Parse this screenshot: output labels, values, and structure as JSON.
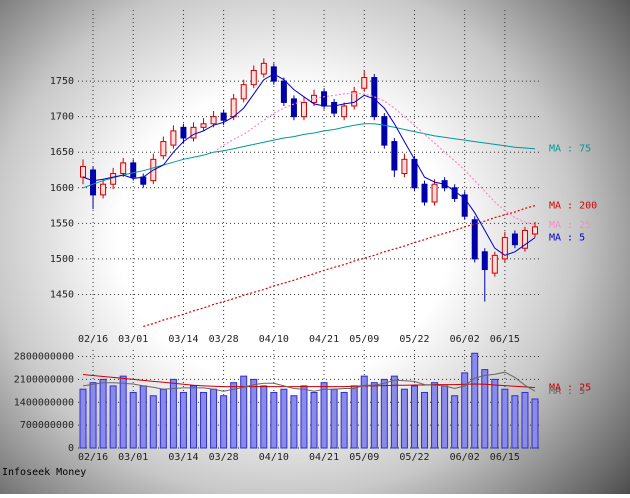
{
  "footer": "Infoseek Money",
  "chart_data": [
    {
      "type": "candlestick",
      "categories": [
        null,
        "02/16",
        null,
        null,
        null,
        "03/01",
        null,
        null,
        null,
        null,
        "03/14",
        null,
        null,
        null,
        "03/28",
        null,
        null,
        null,
        null,
        "04/10",
        null,
        null,
        null,
        null,
        "04/21",
        null,
        null,
        null,
        "05/09",
        null,
        null,
        null,
        null,
        "05/22",
        null,
        null,
        null,
        null,
        "06/02",
        null,
        null,
        null,
        "06/15",
        null,
        null,
        null
      ],
      "open": [
        1615,
        1625,
        1590,
        1605,
        1620,
        1635,
        1615,
        1610,
        1645,
        1660,
        1685,
        1670,
        1685,
        1690,
        1705,
        1700,
        1725,
        1745,
        1760,
        1770,
        1750,
        1725,
        1700,
        1720,
        1735,
        1720,
        1700,
        1715,
        1740,
        1755,
        1700,
        1665,
        1620,
        1640,
        1605,
        1580,
        1610,
        1600,
        1590,
        1555,
        1510,
        1480,
        1500,
        1535,
        1515,
        1535
      ],
      "high": [
        1640,
        1630,
        1612,
        1628,
        1642,
        1640,
        1620,
        1648,
        1672,
        1688,
        1690,
        1692,
        1698,
        1708,
        1710,
        1732,
        1752,
        1772,
        1782,
        1775,
        1755,
        1730,
        1728,
        1738,
        1740,
        1725,
        1720,
        1742,
        1765,
        1760,
        1705,
        1670,
        1648,
        1645,
        1610,
        1612,
        1615,
        1605,
        1595,
        1560,
        1515,
        1510,
        1538,
        1540,
        1545,
        1552
      ],
      "low": [
        1605,
        1570,
        1585,
        1598,
        1615,
        1610,
        1600,
        1605,
        1640,
        1655,
        1662,
        1665,
        1680,
        1685,
        1688,
        1695,
        1720,
        1740,
        1755,
        1745,
        1715,
        1695,
        1695,
        1715,
        1710,
        1700,
        1695,
        1710,
        1735,
        1695,
        1655,
        1615,
        1615,
        1595,
        1575,
        1575,
        1595,
        1580,
        1555,
        1495,
        1440,
        1475,
        1495,
        1515,
        1510,
        1530
      ],
      "close": [
        1630,
        1590,
        1605,
        1620,
        1635,
        1615,
        1605,
        1640,
        1665,
        1680,
        1670,
        1685,
        1690,
        1700,
        1695,
        1725,
        1745,
        1765,
        1775,
        1750,
        1720,
        1700,
        1720,
        1730,
        1715,
        1705,
        1715,
        1735,
        1755,
        1700,
        1660,
        1625,
        1640,
        1600,
        1580,
        1605,
        1600,
        1585,
        1560,
        1500,
        1485,
        1505,
        1530,
        1520,
        1540,
        1545
      ],
      "up_color": "#cc0000",
      "down_color": "#0000aa",
      "series": [
        {
          "name": "MA : 75",
          "color": "#009999",
          "style": "solid",
          "values": [
            1600,
            1605,
            1610,
            1614,
            1618,
            1621,
            1624,
            1628,
            1632,
            1636,
            1640,
            1643,
            1646,
            1650,
            1652,
            1655,
            1658,
            1661,
            1664,
            1667,
            1670,
            1672,
            1675,
            1677,
            1680,
            1682,
            1685,
            1688,
            1690,
            1690,
            1688,
            1685,
            1682,
            1679,
            1676,
            1673,
            1671,
            1669,
            1667,
            1665,
            1663,
            1661,
            1659,
            1657,
            1656,
            1655
          ]
        },
        {
          "name": "MA : 200",
          "color": "#dd0000",
          "style": "dotted",
          "values": [
            null,
            null,
            null,
            null,
            null,
            null,
            1405,
            1409,
            1414,
            1418,
            1422,
            1427,
            1431,
            1436,
            1440,
            1444,
            1449,
            1453,
            1457,
            1462,
            1466,
            1470,
            1475,
            1479,
            1484,
            1488,
            1492,
            1497,
            1501,
            1505,
            1510,
            1514,
            1518,
            1523,
            1527,
            1532,
            1536,
            1540,
            1545,
            1549,
            1553,
            1558,
            1562,
            1566,
            1571,
            1575
          ]
        },
        {
          "name": "MA : 25",
          "color": "#ff88cc",
          "style": "dotted",
          "values": [
            null,
            null,
            null,
            null,
            null,
            null,
            null,
            null,
            null,
            null,
            null,
            null,
            null,
            1650,
            1660,
            1668,
            1675,
            1685,
            1695,
            1705,
            1712,
            1718,
            1722,
            1725,
            1728,
            1730,
            1732,
            1733,
            1732,
            1728,
            1722,
            1712,
            1700,
            1688,
            1675,
            1663,
            1650,
            1638,
            1625,
            1610,
            1595,
            1580,
            1568,
            1558,
            1552,
            1548
          ]
        },
        {
          "name": "MA : 5",
          "color": "#0000cc",
          "style": "solid",
          "values": [
            1615,
            1610,
            1612,
            1615,
            1618,
            1613,
            1615,
            1625,
            1632,
            1650,
            1665,
            1675,
            1680,
            1688,
            1692,
            1700,
            1712,
            1732,
            1752,
            1760,
            1752,
            1738,
            1728,
            1718,
            1715,
            1715,
            1718,
            1720,
            1730,
            1725,
            1712,
            1690,
            1665,
            1640,
            1615,
            1608,
            1605,
            1595,
            1585,
            1565,
            1540,
            1515,
            1505,
            1510,
            1520,
            1530
          ]
        }
      ],
      "ylim": [
        1400,
        1850
      ],
      "yticks": [
        1450,
        1500,
        1550,
        1600,
        1650,
        1700,
        1750
      ],
      "grid": true
    },
    {
      "type": "bar",
      "categories": [
        null,
        "02/16",
        null,
        null,
        null,
        "03/01",
        null,
        null,
        null,
        null,
        "03/14",
        null,
        null,
        null,
        "03/28",
        null,
        null,
        null,
        null,
        "04/10",
        null,
        null,
        null,
        null,
        "04/21",
        null,
        null,
        null,
        "05/09",
        null,
        null,
        null,
        null,
        "05/22",
        null,
        null,
        null,
        null,
        "06/02",
        null,
        null,
        null,
        "06/15",
        null,
        null,
        null
      ],
      "values": [
        1800000000,
        2000000000,
        2100000000,
        1900000000,
        2200000000,
        1700000000,
        1900000000,
        1600000000,
        1800000000,
        2100000000,
        1700000000,
        1900000000,
        1700000000,
        1800000000,
        1600000000,
        2000000000,
        2200000000,
        2100000000,
        1900000000,
        1700000000,
        1800000000,
        1600000000,
        1900000000,
        1700000000,
        2000000000,
        1800000000,
        1700000000,
        1900000000,
        2200000000,
        2000000000,
        2100000000,
        2200000000,
        1800000000,
        1900000000,
        1700000000,
        2000000000,
        1900000000,
        1600000000,
        2300000000,
        2900000000,
        2400000000,
        2100000000,
        1800000000,
        1600000000,
        1700000000,
        1500000000
      ],
      "color": "#3030cc",
      "series": [
        {
          "name": "MA : 25",
          "color": "#cc0000",
          "style": "solid",
          "values": [
            2250000000,
            2220000000,
            2190000000,
            2160000000,
            2130000000,
            2100000000,
            2070000000,
            2040000000,
            2010000000,
            1980000000,
            1950000000,
            1920000000,
            1900000000,
            1890000000,
            1880000000,
            1880000000,
            1880000000,
            1880000000,
            1880000000,
            1880000000,
            1880000000,
            1880000000,
            1880000000,
            1880000000,
            1880000000,
            1880000000,
            1880000000,
            1890000000,
            1900000000,
            1900000000,
            1910000000,
            1920000000,
            1920000000,
            1930000000,
            1930000000,
            1940000000,
            1940000000,
            1940000000,
            1950000000,
            1960000000,
            1950000000,
            1930000000,
            1910000000,
            1890000000,
            1870000000,
            1850000000
          ]
        },
        {
          "name": "MA : 5",
          "color": "#666666",
          "style": "solid",
          "values": [
            1900000000,
            1950000000,
            2000000000,
            2000000000,
            1980000000,
            1960000000,
            1900000000,
            1860000000,
            1800000000,
            1820000000,
            1840000000,
            1840000000,
            1840000000,
            1800000000,
            1740000000,
            1800000000,
            1860000000,
            1940000000,
            1980000000,
            1980000000,
            1900000000,
            1820000000,
            1800000000,
            1740000000,
            1800000000,
            1800000000,
            1820000000,
            1820000000,
            1920000000,
            1920000000,
            1980000000,
            2080000000,
            2060000000,
            2040000000,
            1940000000,
            1920000000,
            1900000000,
            1820000000,
            1900000000,
            2140000000,
            2220000000,
            2260000000,
            2320000000,
            2160000000,
            1920000000,
            1740000000
          ]
        }
      ],
      "ylim": [
        0,
        3000000000
      ],
      "yticks": [
        0,
        700000000,
        1400000000,
        2100000000,
        2800000000
      ],
      "grid": true
    }
  ]
}
